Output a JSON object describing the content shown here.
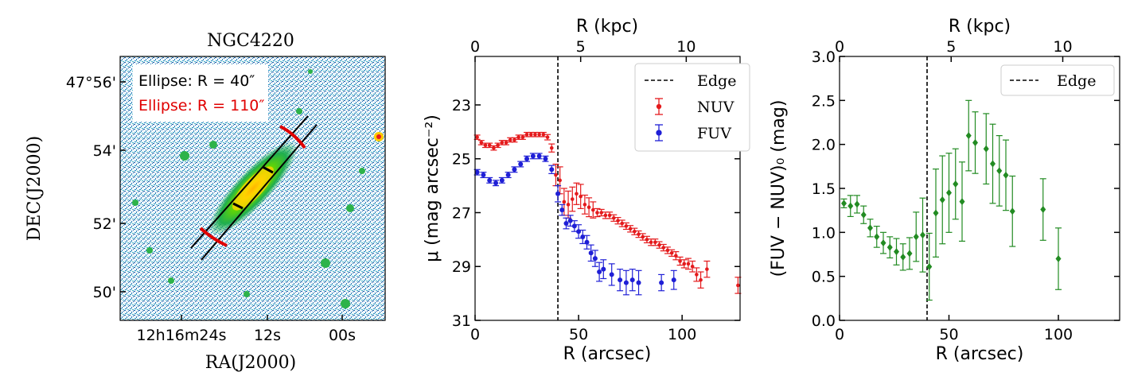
{
  "chart_data": [
    {
      "type": "image",
      "title": "NGC4220",
      "xlabel": "RA(J2000)",
      "ylabel": "DEC(J2000)",
      "x_ticks": [
        "12h16m24s",
        "12s",
        "00s"
      ],
      "y_ticks": [
        "47°56'",
        "54'",
        "52'",
        "50'"
      ],
      "annotations": [
        {
          "text": "Ellipse: R = 40″",
          "color": "#000000"
        },
        {
          "text": "Ellipse: R = 110″",
          "color": "#e00000"
        }
      ]
    },
    {
      "type": "scatter",
      "xlabel": "R (arcsec)",
      "x2label": "R (kpc)",
      "ylabel": "μ (mag arcsec⁻²)",
      "xlim": [
        0,
        128
      ],
      "ylim": [
        31,
        21.2
      ],
      "x_ticks": [
        0,
        50,
        100
      ],
      "x2_ticks": [
        0,
        5,
        10
      ],
      "y_ticks": [
        23,
        25,
        27,
        29,
        31
      ],
      "edge": 40,
      "edge_label": "Edge",
      "series": [
        {
          "name": "NUV",
          "color": "#e41a1c",
          "marker": "dot",
          "x": [
            1,
            3,
            5,
            7,
            9,
            11,
            13,
            15,
            17,
            19,
            21,
            23,
            25,
            27,
            29,
            31,
            33,
            35,
            37,
            39,
            41,
            43,
            45,
            47,
            49,
            51,
            53,
            55,
            57,
            59,
            61,
            63,
            65,
            67,
            69,
            71,
            73,
            75,
            77,
            79,
            81,
            83,
            85,
            87,
            89,
            91,
            93,
            95,
            97,
            99,
            101,
            103,
            105,
            107,
            109,
            112,
            127
          ],
          "y": [
            24.2,
            24.4,
            24.5,
            24.5,
            24.6,
            24.5,
            24.4,
            24.4,
            24.3,
            24.3,
            24.2,
            24.2,
            24.1,
            24.1,
            24.1,
            24.1,
            24.1,
            24.2,
            24.6,
            25.6,
            25.8,
            26.6,
            26.7,
            26.5,
            26.3,
            26.4,
            26.7,
            26.8,
            26.9,
            27.0,
            27.0,
            27.1,
            27.1,
            27.2,
            27.3,
            27.4,
            27.5,
            27.6,
            27.7,
            27.8,
            27.9,
            28.0,
            28.1,
            28.1,
            28.2,
            28.3,
            28.4,
            28.5,
            28.6,
            28.8,
            28.9,
            28.9,
            29.0,
            29.3,
            29.5,
            29.1,
            29.7
          ],
          "err": [
            0.08,
            0.08,
            0.08,
            0.08,
            0.08,
            0.08,
            0.08,
            0.08,
            0.08,
            0.08,
            0.08,
            0.08,
            0.08,
            0.08,
            0.08,
            0.08,
            0.08,
            0.1,
            0.15,
            0.4,
            0.5,
            0.5,
            0.5,
            0.45,
            0.4,
            0.45,
            0.35,
            0.35,
            0.3,
            0.15,
            0.12,
            0.12,
            0.12,
            0.12,
            0.12,
            0.12,
            0.12,
            0.12,
            0.12,
            0.12,
            0.12,
            0.12,
            0.12,
            0.12,
            0.12,
            0.12,
            0.12,
            0.12,
            0.15,
            0.15,
            0.15,
            0.2,
            0.2,
            0.25,
            0.3,
            0.3,
            0.3
          ]
        },
        {
          "name": "FUV",
          "color": "#1f1fd6",
          "marker": "star",
          "x": [
            1,
            4,
            7,
            10,
            13,
            16,
            19,
            22,
            25,
            28,
            31,
            34,
            37,
            40,
            42,
            44,
            46,
            48,
            50,
            52,
            54,
            56,
            58,
            60,
            62,
            66,
            70,
            73,
            76,
            79,
            90,
            96
          ],
          "y": [
            25.5,
            25.6,
            25.8,
            25.9,
            25.8,
            25.6,
            25.4,
            25.2,
            25.0,
            24.9,
            24.9,
            25.0,
            25.4,
            26.3,
            26.9,
            27.4,
            27.3,
            27.5,
            27.7,
            27.9,
            28.1,
            28.5,
            28.7,
            29.2,
            29.1,
            29.3,
            29.5,
            29.6,
            29.5,
            29.6,
            29.6,
            29.5
          ],
          "err": [
            0.1,
            0.1,
            0.1,
            0.1,
            0.1,
            0.1,
            0.1,
            0.1,
            0.1,
            0.1,
            0.1,
            0.1,
            0.15,
            0.3,
            0.2,
            0.2,
            0.2,
            0.2,
            0.25,
            0.25,
            0.25,
            0.3,
            0.3,
            0.35,
            0.35,
            0.4,
            0.4,
            0.45,
            0.4,
            0.45,
            0.3,
            0.35
          ]
        }
      ]
    },
    {
      "type": "scatter",
      "xlabel": "R (arcsec)",
      "x2label": "R (kpc)",
      "ylabel": "(FUV − NUV)₀ (mag)",
      "xlim": [
        0,
        128
      ],
      "ylim": [
        0,
        3.0
      ],
      "x_ticks": [
        0,
        50,
        100
      ],
      "x2_ticks": [
        0,
        5,
        10
      ],
      "y_ticks": [
        "0.0",
        "0.5",
        "1.0",
        "1.5",
        "2.0",
        "2.5",
        "3.0"
      ],
      "edge": 40,
      "edge_label": "Edge",
      "series": [
        {
          "name": "FUV−NUV",
          "color": "#228b22",
          "marker": "diamond",
          "x": [
            2,
            5,
            8,
            11,
            14,
            17,
            20,
            23,
            26,
            29,
            32,
            35,
            38,
            41,
            44,
            47,
            50,
            53,
            56,
            59,
            62,
            67,
            70,
            73,
            76,
            79,
            93,
            100
          ],
          "y": [
            1.33,
            1.3,
            1.32,
            1.2,
            1.05,
            0.95,
            0.88,
            0.83,
            0.78,
            0.72,
            0.76,
            0.95,
            0.97,
            0.61,
            1.22,
            1.37,
            1.45,
            1.55,
            1.35,
            2.1,
            2.02,
            1.95,
            1.78,
            1.7,
            1.65,
            1.24,
            1.26,
            0.7
          ],
          "err": [
            0.05,
            0.12,
            0.1,
            0.1,
            0.1,
            0.12,
            0.12,
            0.12,
            0.15,
            0.15,
            0.18,
            0.28,
            0.42,
            0.38,
            0.5,
            0.5,
            0.45,
            0.4,
            0.45,
            0.4,
            0.35,
            0.4,
            0.45,
            0.4,
            0.4,
            0.4,
            0.35,
            0.35
          ]
        }
      ]
    }
  ]
}
